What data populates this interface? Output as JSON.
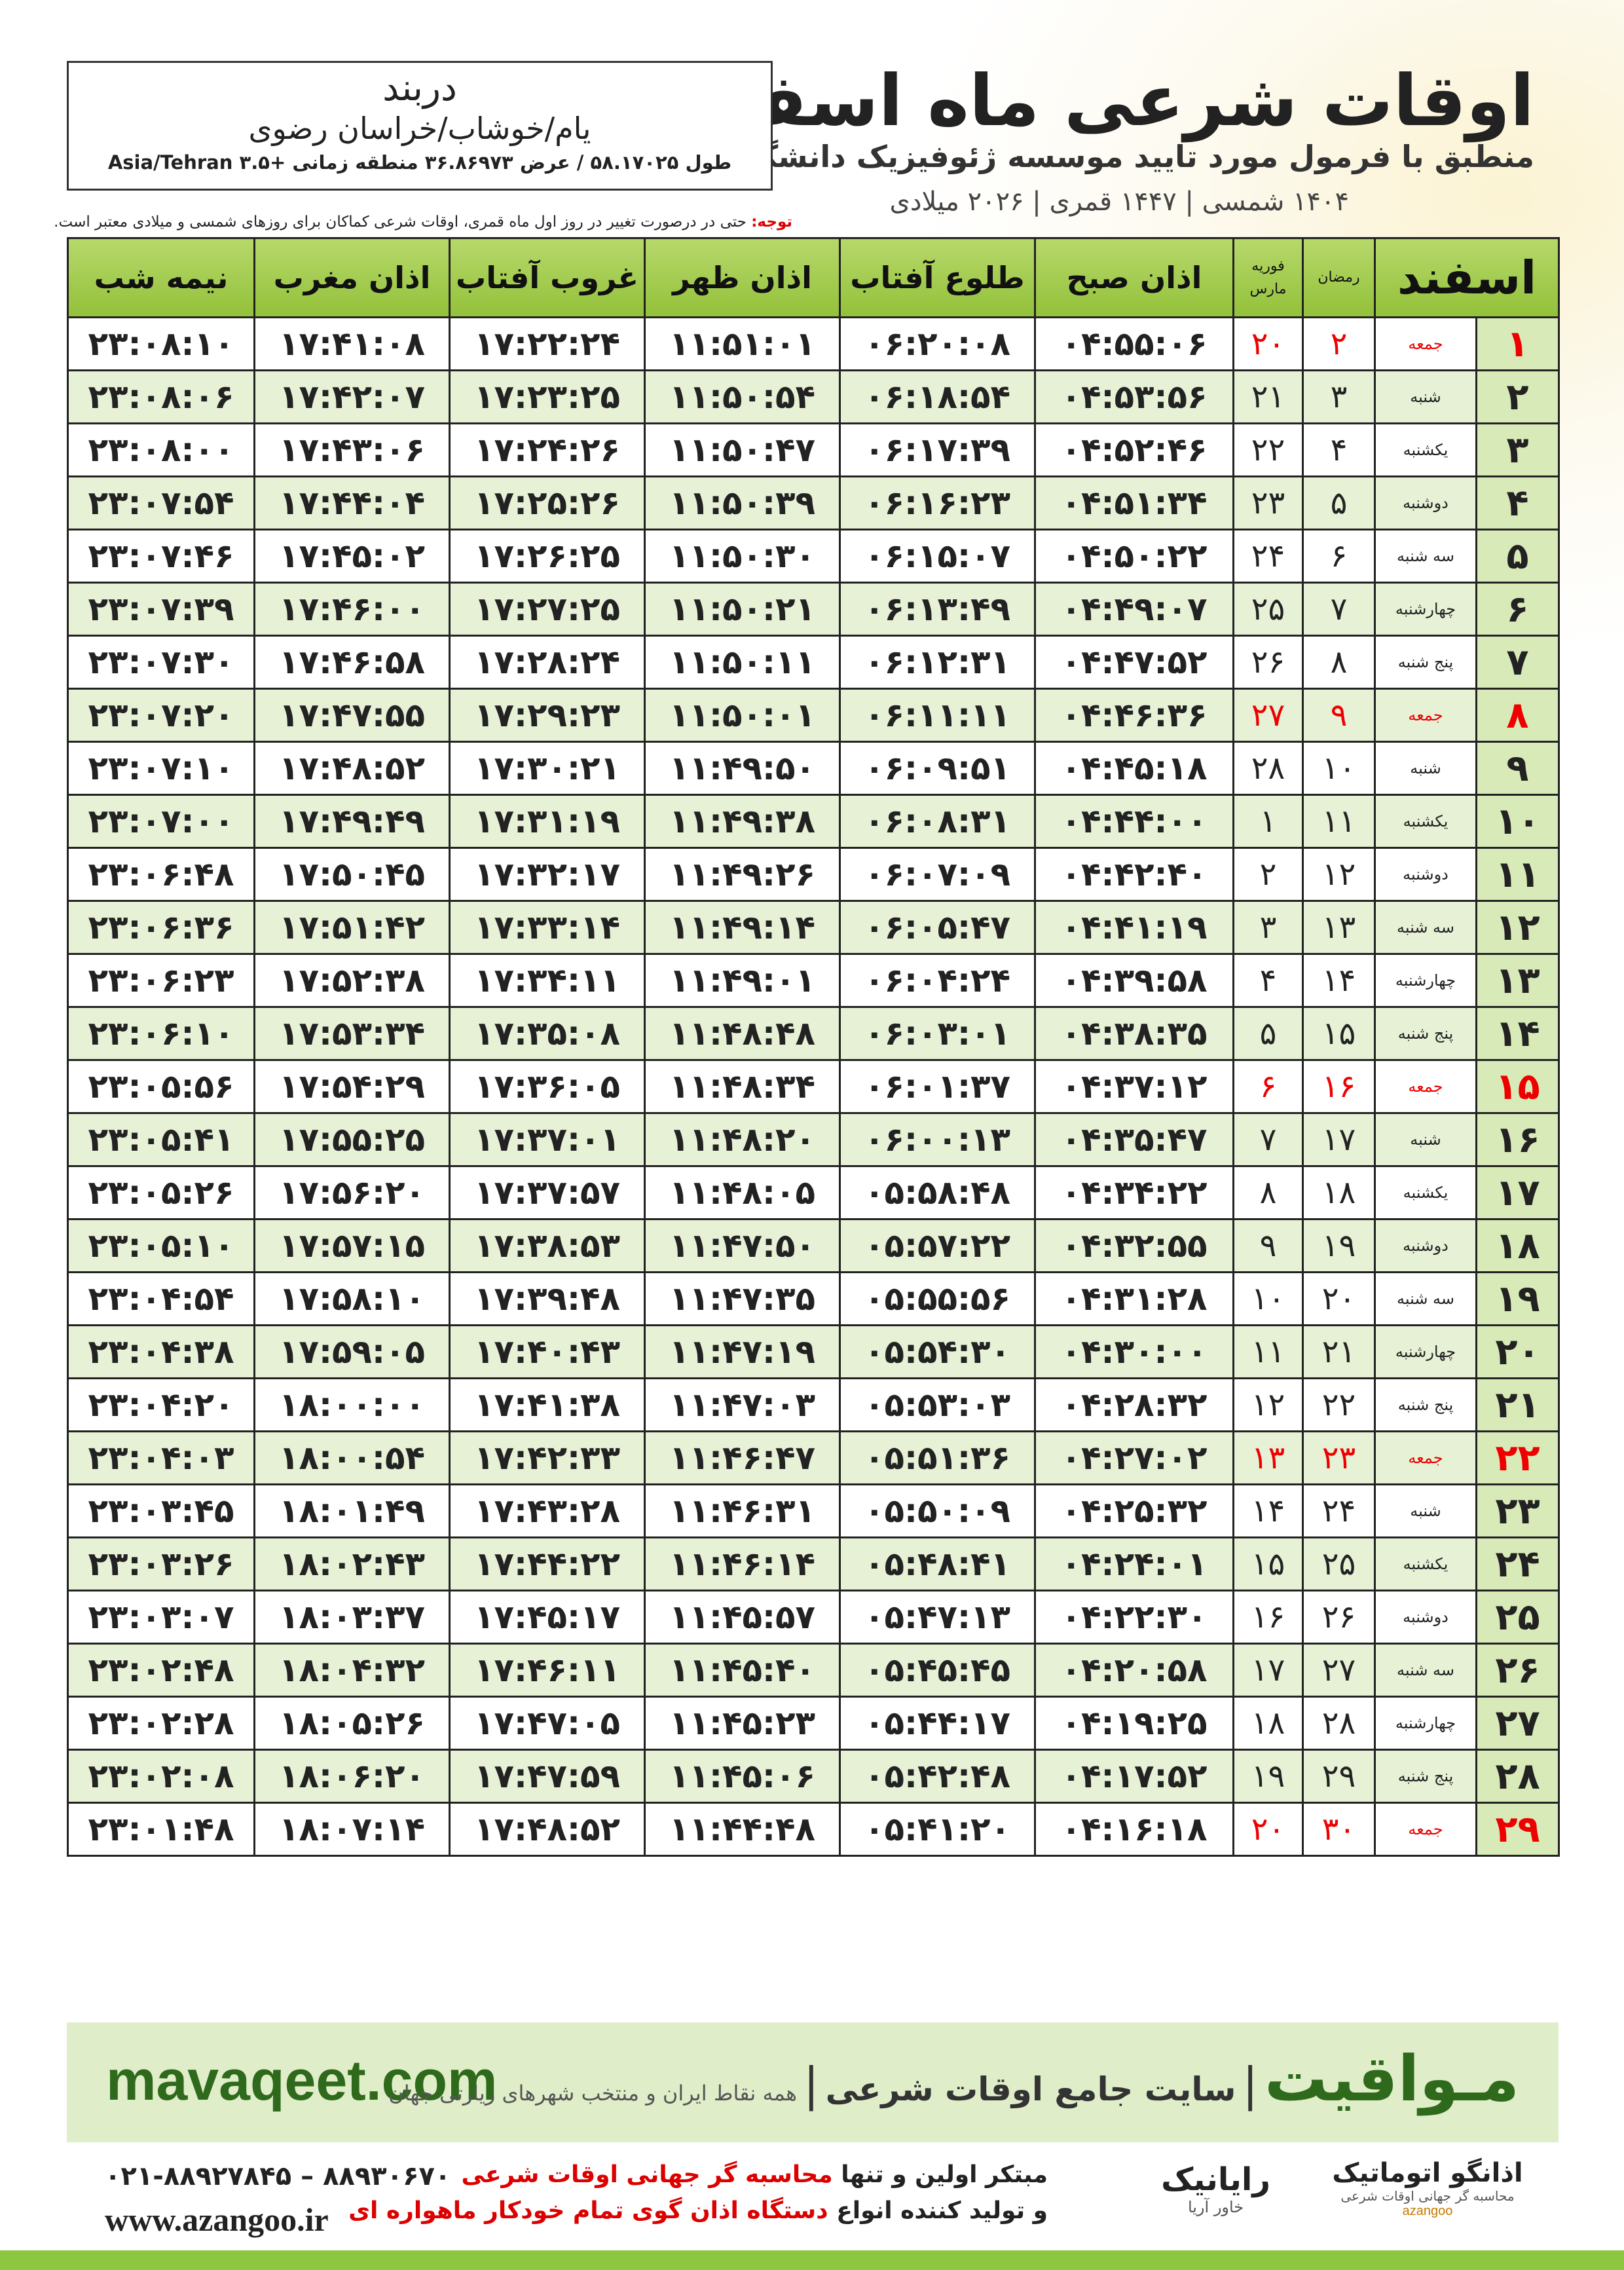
{
  "header": {
    "title": "اوقات شرعی ماه اسفند",
    "subtitle": "منطبق با فرمول مورد تایید موسسه ژئوفیزیک دانشگاه تهران",
    "dates": "۱۴۰۴ شمسی | ۱۴۴۷ قمری | ۲۰۲۶ میلادی"
  },
  "location": {
    "name": "دربند",
    "region": "یام/خوشاب/خراسان رضوی",
    "coords": "طول ۵۸.۱۷۰۲۵ / عرض ۳۶.۸۶۹۷۳ منطقه زمانی +۳.۵ Asia/Tehran"
  },
  "note": {
    "label": "توجه:",
    "text": "حتی در درصورت تغییر در روز اول ماه قمری، اوقات شرعی کماکان برای روزهای شمسی و میلادی معتبر است."
  },
  "table": {
    "columns": [
      "اسفند",
      "رمضان",
      "فوریه",
      "مارس",
      "اذان صبح",
      "طلوع آفتاب",
      "اذان ظهر",
      "غروب آفتاب",
      "اذان مغرب",
      "نیمه شب"
    ],
    "rows": [
      [
        "۱",
        "جمعه",
        "۲",
        "۲۰",
        "۰۴:۵۵:۰۶",
        "۰۶:۲۰:۰۸",
        "۱۱:۵۱:۰۱",
        "۱۷:۲۲:۲۴",
        "۱۷:۴۱:۰۸",
        "۲۳:۰۸:۱۰"
      ],
      [
        "۲",
        "شنبه",
        "۳",
        "۲۱",
        "۰۴:۵۳:۵۶",
        "۰۶:۱۸:۵۴",
        "۱۱:۵۰:۵۴",
        "۱۷:۲۳:۲۵",
        "۱۷:۴۲:۰۷",
        "۲۳:۰۸:۰۶"
      ],
      [
        "۳",
        "یکشنبه",
        "۴",
        "۲۲",
        "۰۴:۵۲:۴۶",
        "۰۶:۱۷:۳۹",
        "۱۱:۵۰:۴۷",
        "۱۷:۲۴:۲۶",
        "۱۷:۴۳:۰۶",
        "۲۳:۰۸:۰۰"
      ],
      [
        "۴",
        "دوشنبه",
        "۵",
        "۲۳",
        "۰۴:۵۱:۳۴",
        "۰۶:۱۶:۲۳",
        "۱۱:۵۰:۳۹",
        "۱۷:۲۵:۲۶",
        "۱۷:۴۴:۰۴",
        "۲۳:۰۷:۵۴"
      ],
      [
        "۵",
        "سه شنبه",
        "۶",
        "۲۴",
        "۰۴:۵۰:۲۲",
        "۰۶:۱۵:۰۷",
        "۱۱:۵۰:۳۰",
        "۱۷:۲۶:۲۵",
        "۱۷:۴۵:۰۲",
        "۲۳:۰۷:۴۶"
      ],
      [
        "۶",
        "چهارشنبه",
        "۷",
        "۲۵",
        "۰۴:۴۹:۰۷",
        "۰۶:۱۳:۴۹",
        "۱۱:۵۰:۲۱",
        "۱۷:۲۷:۲۵",
        "۱۷:۴۶:۰۰",
        "۲۳:۰۷:۳۹"
      ],
      [
        "۷",
        "پنج شنبه",
        "۸",
        "۲۶",
        "۰۴:۴۷:۵۲",
        "۰۶:۱۲:۳۱",
        "۱۱:۵۰:۱۱",
        "۱۷:۲۸:۲۴",
        "۱۷:۴۶:۵۸",
        "۲۳:۰۷:۳۰"
      ],
      [
        "۸",
        "جمعه",
        "۹",
        "۲۷",
        "۰۴:۴۶:۳۶",
        "۰۶:۱۱:۱۱",
        "۱۱:۵۰:۰۱",
        "۱۷:۲۹:۲۳",
        "۱۷:۴۷:۵۵",
        "۲۳:۰۷:۲۰"
      ],
      [
        "۹",
        "شنبه",
        "۱۰",
        "۲۸",
        "۰۴:۴۵:۱۸",
        "۰۶:۰۹:۵۱",
        "۱۱:۴۹:۵۰",
        "۱۷:۳۰:۲۱",
        "۱۷:۴۸:۵۲",
        "۲۳:۰۷:۱۰"
      ],
      [
        "۱۰",
        "یکشنبه",
        "۱۱",
        "۱",
        "۰۴:۴۴:۰۰",
        "۰۶:۰۸:۳۱",
        "۱۱:۴۹:۳۸",
        "۱۷:۳۱:۱۹",
        "۱۷:۴۹:۴۹",
        "۲۳:۰۷:۰۰"
      ],
      [
        "۱۱",
        "دوشنبه",
        "۱۲",
        "۲",
        "۰۴:۴۲:۴۰",
        "۰۶:۰۷:۰۹",
        "۱۱:۴۹:۲۶",
        "۱۷:۳۲:۱۷",
        "۱۷:۵۰:۴۵",
        "۲۳:۰۶:۴۸"
      ],
      [
        "۱۲",
        "سه شنبه",
        "۱۳",
        "۳",
        "۰۴:۴۱:۱۹",
        "۰۶:۰۵:۴۷",
        "۱۱:۴۹:۱۴",
        "۱۷:۳۳:۱۴",
        "۱۷:۵۱:۴۲",
        "۲۳:۰۶:۳۶"
      ],
      [
        "۱۳",
        "چهارشنبه",
        "۱۴",
        "۴",
        "۰۴:۳۹:۵۸",
        "۰۶:۰۴:۲۴",
        "۱۱:۴۹:۰۱",
        "۱۷:۳۴:۱۱",
        "۱۷:۵۲:۳۸",
        "۲۳:۰۶:۲۳"
      ],
      [
        "۱۴",
        "پنج شنبه",
        "۱۵",
        "۵",
        "۰۴:۳۸:۳۵",
        "۰۶:۰۳:۰۱",
        "۱۱:۴۸:۴۸",
        "۱۷:۳۵:۰۸",
        "۱۷:۵۳:۳۴",
        "۲۳:۰۶:۱۰"
      ],
      [
        "۱۵",
        "جمعه",
        "۱۶",
        "۶",
        "۰۴:۳۷:۱۲",
        "۰۶:۰۱:۳۷",
        "۱۱:۴۸:۳۴",
        "۱۷:۳۶:۰۵",
        "۱۷:۵۴:۲۹",
        "۲۳:۰۵:۵۶"
      ],
      [
        "۱۶",
        "شنبه",
        "۱۷",
        "۷",
        "۰۴:۳۵:۴۷",
        "۰۶:۰۰:۱۳",
        "۱۱:۴۸:۲۰",
        "۱۷:۳۷:۰۱",
        "۱۷:۵۵:۲۵",
        "۲۳:۰۵:۴۱"
      ],
      [
        "۱۷",
        "یکشنبه",
        "۱۸",
        "۸",
        "۰۴:۳۴:۲۲",
        "۰۵:۵۸:۴۸",
        "۱۱:۴۸:۰۵",
        "۱۷:۳۷:۵۷",
        "۱۷:۵۶:۲۰",
        "۲۳:۰۵:۲۶"
      ],
      [
        "۱۸",
        "دوشنبه",
        "۱۹",
        "۹",
        "۰۴:۳۲:۵۵",
        "۰۵:۵۷:۲۲",
        "۱۱:۴۷:۵۰",
        "۱۷:۳۸:۵۳",
        "۱۷:۵۷:۱۵",
        "۲۳:۰۵:۱۰"
      ],
      [
        "۱۹",
        "سه شنبه",
        "۲۰",
        "۱۰",
        "۰۴:۳۱:۲۸",
        "۰۵:۵۵:۵۶",
        "۱۱:۴۷:۳۵",
        "۱۷:۳۹:۴۸",
        "۱۷:۵۸:۱۰",
        "۲۳:۰۴:۵۴"
      ],
      [
        "۲۰",
        "چهارشنبه",
        "۲۱",
        "۱۱",
        "۰۴:۳۰:۰۰",
        "۰۵:۵۴:۳۰",
        "۱۱:۴۷:۱۹",
        "۱۷:۴۰:۴۳",
        "۱۷:۵۹:۰۵",
        "۲۳:۰۴:۳۸"
      ],
      [
        "۲۱",
        "پنج شنبه",
        "۲۲",
        "۱۲",
        "۰۴:۲۸:۳۲",
        "۰۵:۵۳:۰۳",
        "۱۱:۴۷:۰۳",
        "۱۷:۴۱:۳۸",
        "۱۸:۰۰:۰۰",
        "۲۳:۰۴:۲۰"
      ],
      [
        "۲۲",
        "جمعه",
        "۲۳",
        "۱۳",
        "۰۴:۲۷:۰۲",
        "۰۵:۵۱:۳۶",
        "۱۱:۴۶:۴۷",
        "۱۷:۴۲:۳۳",
        "۱۸:۰۰:۵۴",
        "۲۳:۰۴:۰۳"
      ],
      [
        "۲۳",
        "شنبه",
        "۲۴",
        "۱۴",
        "۰۴:۲۵:۳۲",
        "۰۵:۵۰:۰۹",
        "۱۱:۴۶:۳۱",
        "۱۷:۴۳:۲۸",
        "۱۸:۰۱:۴۹",
        "۲۳:۰۳:۴۵"
      ],
      [
        "۲۴",
        "یکشنبه",
        "۲۵",
        "۱۵",
        "۰۴:۲۴:۰۱",
        "۰۵:۴۸:۴۱",
        "۱۱:۴۶:۱۴",
        "۱۷:۴۴:۲۲",
        "۱۸:۰۲:۴۳",
        "۲۳:۰۳:۲۶"
      ],
      [
        "۲۵",
        "دوشنبه",
        "۲۶",
        "۱۶",
        "۰۴:۲۲:۳۰",
        "۰۵:۴۷:۱۳",
        "۱۱:۴۵:۵۷",
        "۱۷:۴۵:۱۷",
        "۱۸:۰۳:۳۷",
        "۲۳:۰۳:۰۷"
      ],
      [
        "۲۶",
        "سه شنبه",
        "۲۷",
        "۱۷",
        "۰۴:۲۰:۵۸",
        "۰۵:۴۵:۴۵",
        "۱۱:۴۵:۴۰",
        "۱۷:۴۶:۱۱",
        "۱۸:۰۴:۳۲",
        "۲۳:۰۲:۴۸"
      ],
      [
        "۲۷",
        "چهارشنبه",
        "۲۸",
        "۱۸",
        "۰۴:۱۹:۲۵",
        "۰۵:۴۴:۱۷",
        "۱۱:۴۵:۲۳",
        "۱۷:۴۷:۰۵",
        "۱۸:۰۵:۲۶",
        "۲۳:۰۲:۲۸"
      ],
      [
        "۲۸",
        "پنج شنبه",
        "۲۹",
        "۱۹",
        "۰۴:۱۷:۵۲",
        "۰۵:۴۲:۴۸",
        "۱۱:۴۵:۰۶",
        "۱۷:۴۷:۵۹",
        "۱۸:۰۶:۲۰",
        "۲۳:۰۲:۰۸"
      ],
      [
        "۲۹",
        "جمعه",
        "۳۰",
        "۲۰",
        "۰۴:۱۶:۱۸",
        "۰۵:۴۱:۲۰",
        "۱۱:۴۴:۴۸",
        "۱۷:۴۸:۵۲",
        "۱۸:۰۷:۱۴",
        "۲۳:۰۱:۴۸"
      ]
    ]
  },
  "banner": {
    "site_url": "mavaqeet.com",
    "brand": "مـواقیت",
    "tagline": "سایت جامع اوقات شرعی",
    "coverage": "همه نقاط ایران و منتخب شهرهای زیارتی جهان"
  },
  "footer": {
    "phones": "۰۲۱-۸۸۹۲۷۸۴۵ – ۸۸۹۳۰۶۷۰",
    "website": "www.azangoo.ir",
    "line1": {
      "text": "مبتکر اولین و تنها",
      "highlight": "محاسبه گر جهانی اوقات شرعی"
    },
    "line2": {
      "text": "و تولید کننده انواع",
      "highlight": "دستگاه اذان گوی تمام خودکار ماهواره ای"
    },
    "logo1": {
      "name": "رایانیک",
      "sub": "خاور آریا"
    },
    "logo2": {
      "name": "اذانگو اتوماتیک",
      "sub": "محاسبه گر جهانی اوقات شرعی",
      "latin": "azangoo"
    }
  }
}
